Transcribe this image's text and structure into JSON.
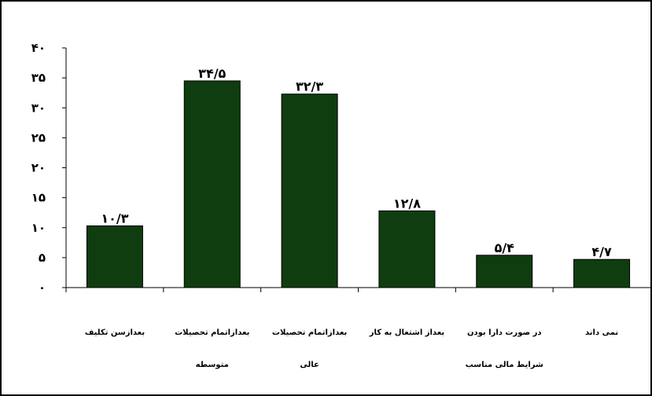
{
  "chart_data": {
    "type": "bar",
    "title": "",
    "xlabel": "",
    "ylabel": "",
    "ylim": [
      0,
      40
    ],
    "yticks": [
      0,
      5,
      10,
      15,
      20,
      25,
      30,
      35,
      40
    ],
    "ytick_labels": [
      "۰",
      "۵",
      "۱۰",
      "۱۵",
      "۲۰",
      "۲۵",
      "۳۰",
      "۳۵",
      "۴۰"
    ],
    "categories": [
      [
        "بعدازسن تکلیف"
      ],
      [
        "بعدازاتمام تحصیلات",
        "متوسطه"
      ],
      [
        "بعدازاتمام تحصیلات",
        "عالی"
      ],
      [
        "بعداز اشتغال به کار"
      ],
      [
        "در صورت دارا بودن",
        "شرایط مالی مناسب"
      ],
      [
        "نمی داند"
      ]
    ],
    "values": [
      10.3,
      34.5,
      32.3,
      12.8,
      5.4,
      4.7
    ],
    "value_labels": [
      "۱۰/۳",
      "۳۴/۵",
      "۳۲/۳",
      "۱۲/۸",
      "۵/۴",
      "۴/۷"
    ],
    "bar_color": "#0f3d0f",
    "grid": false,
    "legend": "none"
  }
}
